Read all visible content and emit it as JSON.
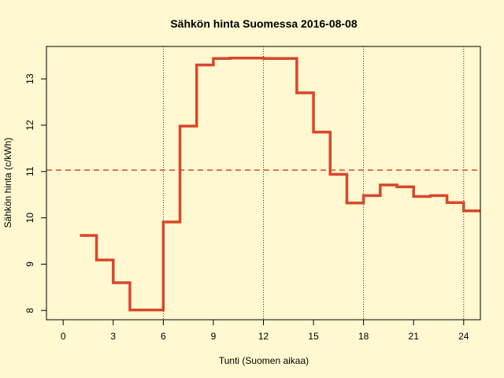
{
  "chart_data": {
    "type": "line",
    "title": "Sähkön hinta Suomessa 2016-08-08",
    "xlabel": "Tunti (Suomen aikaa)",
    "ylabel": "Sähkön hinta (c/kWh)",
    "xlim": [
      -1,
      25
    ],
    "ylim": [
      7.8,
      13.7
    ],
    "x_ticks": [
      0,
      3,
      6,
      9,
      12,
      15,
      18,
      21,
      24
    ],
    "y_ticks": [
      8,
      9,
      10,
      11,
      12,
      13
    ],
    "vertical_gridlines_at": [
      6,
      12,
      18,
      24
    ],
    "average_line": 11.03,
    "series": [
      {
        "style": "step",
        "color": "#d9472b",
        "x": [
          1,
          2,
          3,
          4,
          5,
          6,
          7,
          8,
          9,
          10,
          11,
          12,
          13,
          14,
          15,
          16,
          17,
          18,
          19,
          20,
          21,
          22,
          23,
          24
        ],
        "values": [
          9.62,
          9.09,
          8.6,
          8.01,
          8.01,
          9.91,
          11.98,
          13.3,
          13.44,
          13.45,
          13.45,
          13.44,
          13.44,
          12.7,
          11.85,
          10.94,
          10.32,
          10.48,
          10.71,
          10.67,
          10.46,
          10.48,
          10.33,
          10.15
        ]
      }
    ]
  }
}
